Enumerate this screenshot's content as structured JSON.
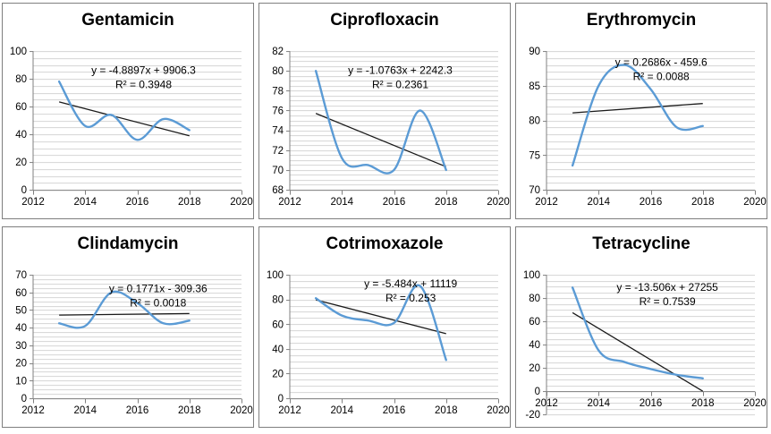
{
  "window": {
    "background": "#ffffff",
    "panel_border": "#7f7f7f"
  },
  "colors": {
    "series_line": "#5B9BD5",
    "trend_line": "#1a1a1a",
    "gridline": "#d4d4d4",
    "axis": "#808080",
    "text": "#000000"
  },
  "chart_data": [
    {
      "type": "line",
      "title": "Gentamicin",
      "equation": "y = -4.8897x + 9906.3",
      "r_squared": "R² = 0.3948",
      "trend": {
        "slope": -4.8897,
        "intercept": 9906.3,
        "x_start": 2013,
        "x_end": 2018
      },
      "x": [
        2013,
        2014,
        2015,
        2016,
        2017,
        2018
      ],
      "values": [
        78,
        46,
        54,
        36,
        51,
        43
      ],
      "xlim": [
        2012,
        2020
      ],
      "x_ticks": [
        2012,
        2014,
        2016,
        2018,
        2020
      ],
      "ylim": [
        0,
        100
      ],
      "y_major": 20,
      "y_minor": 5,
      "smooth": true,
      "grid": "horizontal-minor",
      "legend": "none",
      "eq_pos": {
        "x_frac": 0.53,
        "y_frac": 0.1
      }
    },
    {
      "type": "line",
      "title": "Ciprofloxacin",
      "equation": "y = -1.0763x + 2242.3",
      "r_squared": "R² = 0.2361",
      "trend": {
        "slope": -1.0763,
        "intercept": 2242.3,
        "x_start": 2013,
        "x_end": 2018
      },
      "x": [
        2013,
        2014,
        2015,
        2016,
        2017,
        2018
      ],
      "values": [
        80,
        71.2,
        70.5,
        70,
        76,
        70
      ],
      "xlim": [
        2012,
        2020
      ],
      "x_ticks": [
        2012,
        2014,
        2016,
        2018,
        2020
      ],
      "ylim": [
        68,
        82
      ],
      "y_major": 2,
      "y_minor": 0.5,
      "smooth": true,
      "grid": "horizontal-minor",
      "legend": "none",
      "eq_pos": {
        "x_frac": 0.53,
        "y_frac": 0.1
      }
    },
    {
      "type": "line",
      "title": "Erythromycin",
      "equation": "y = 0.2686x - 459.6",
      "r_squared": "R² = 0.0088",
      "trend": {
        "slope": 0.2686,
        "intercept": -459.6,
        "x_start": 2013,
        "x_end": 2018
      },
      "x": [
        2013,
        2014,
        2015,
        2016,
        2017,
        2018
      ],
      "values": [
        73.5,
        85,
        88,
        84.5,
        79,
        79.2
      ],
      "xlim": [
        2012,
        2020
      ],
      "x_ticks": [
        2012,
        2014,
        2016,
        2018,
        2020
      ],
      "ylim": [
        70,
        90
      ],
      "y_major": 5,
      "y_minor": 1,
      "smooth": true,
      "grid": "horizontal-minor",
      "legend": "none",
      "eq_pos": {
        "x_frac": 0.55,
        "y_frac": 0.04
      }
    },
    {
      "type": "line",
      "title": "Clindamycin",
      "equation": "y = 0.1771x - 309.36",
      "r_squared": "R² = 0.0018",
      "trend": {
        "slope": 0.1771,
        "intercept": -309.36,
        "x_start": 2013,
        "x_end": 2018
      },
      "x": [
        2013,
        2014,
        2015,
        2016,
        2017,
        2018
      ],
      "values": [
        42.5,
        41,
        60,
        54,
        42.5,
        44
      ],
      "xlim": [
        2012,
        2020
      ],
      "x_ticks": [
        2012,
        2014,
        2016,
        2018,
        2020
      ],
      "ylim": [
        0,
        70
      ],
      "y_major": 10,
      "y_minor": 2.5,
      "smooth": true,
      "grid": "horizontal-minor",
      "legend": "none",
      "eq_pos": {
        "x_frac": 0.6,
        "y_frac": 0.07
      }
    },
    {
      "type": "line",
      "title": "Cotrimoxazole",
      "equation": "y = -5.484x + 11119",
      "r_squared": "R² = 0.253",
      "trend": {
        "slope": -5.484,
        "intercept": 11119,
        "x_start": 2013,
        "x_end": 2018
      },
      "x": [
        2013,
        2014,
        2015,
        2016,
        2017,
        2018
      ],
      "values": [
        81,
        67,
        63,
        61,
        91,
        31
      ],
      "xlim": [
        2012,
        2020
      ],
      "x_ticks": [
        2012,
        2014,
        2016,
        2018,
        2020
      ],
      "ylim": [
        0,
        100
      ],
      "y_major": 20,
      "y_minor": 5,
      "smooth": true,
      "grid": "horizontal-minor",
      "legend": "none",
      "eq_pos": {
        "x_frac": 0.58,
        "y_frac": 0.03
      }
    },
    {
      "type": "line",
      "title": "Tetracycline",
      "equation": "y = -13.506x + 27255",
      "r_squared": "R² = 0.7539",
      "trend": {
        "slope": -13.506,
        "intercept": 27255,
        "x_start": 2013,
        "x_end": 2018
      },
      "x": [
        2013,
        2014,
        2015,
        2016,
        2017,
        2018
      ],
      "values": [
        89,
        35,
        25,
        19,
        14,
        11
      ],
      "xlim": [
        2012,
        2020
      ],
      "x_ticks": [
        2012,
        2014,
        2016,
        2018,
        2020
      ],
      "ylim": [
        -20,
        100
      ],
      "y_major": 20,
      "y_minor": 5,
      "smooth": true,
      "grid": "horizontal-minor",
      "legend": "none",
      "eq_pos": {
        "x_frac": 0.58,
        "y_frac": 0.05
      }
    }
  ]
}
